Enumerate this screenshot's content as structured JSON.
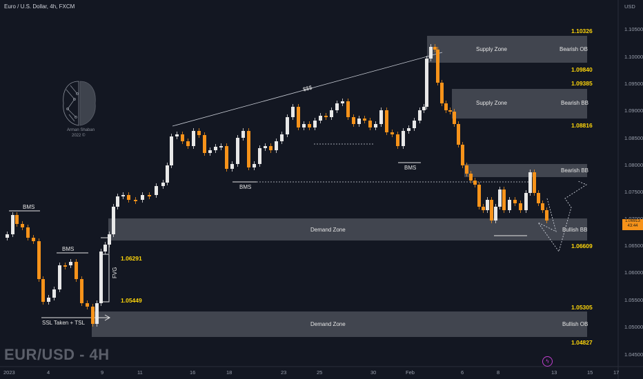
{
  "header": {
    "title": "Euro / U.S. Dollar, 4h, FXCM",
    "currency": "USD"
  },
  "watermark": "EUR/USD - 4H",
  "brand": {
    "name_line1": "Arman Shaban",
    "name_line2": "2022 ©"
  },
  "zones": [
    {
      "label": "Supply Zone",
      "tag": "Bearish OB"
    },
    {
      "label": "Supply Zone",
      "tag": "Bearish BB"
    },
    {
      "label": "",
      "tag": "Bearish BB"
    },
    {
      "label": "Demand Zone",
      "tag": "Bullish BB"
    },
    {
      "label": "Demand Zone",
      "tag": "Bullish OB"
    }
  ],
  "annotations": {
    "bms": "BMS",
    "liquidity": "$$$",
    "ssl": "SSL Taken + TSL",
    "fvg": "FVG"
  },
  "levels": [
    "1.10326",
    "1.09840",
    "1.09385",
    "1.08816",
    "1.06609",
    "1.06291",
    "1.05449",
    "1.05305",
    "1.04827"
  ],
  "y_axis": [
    "1.10500",
    "1.10000",
    "1.09500",
    "1.09000",
    "1.08500",
    "1.08000",
    "1.07500",
    "1.07000",
    "1.06500",
    "1.06000",
    "1.05500",
    "1.05000",
    "1.04500"
  ],
  "x_axis": [
    "2023",
    "4",
    "9",
    "11",
    "16",
    "18",
    "23",
    "25",
    "30",
    "Feb",
    "6",
    "8",
    "13",
    "15",
    "17"
  ],
  "current_price": {
    "value": "1.06913",
    "countdown": "43:44"
  },
  "colors": {
    "background": "#131722",
    "bull": "#e8e8e8",
    "bear": "#f7931a",
    "zone": "#4a4d57",
    "level": "#ffd60a"
  }
}
